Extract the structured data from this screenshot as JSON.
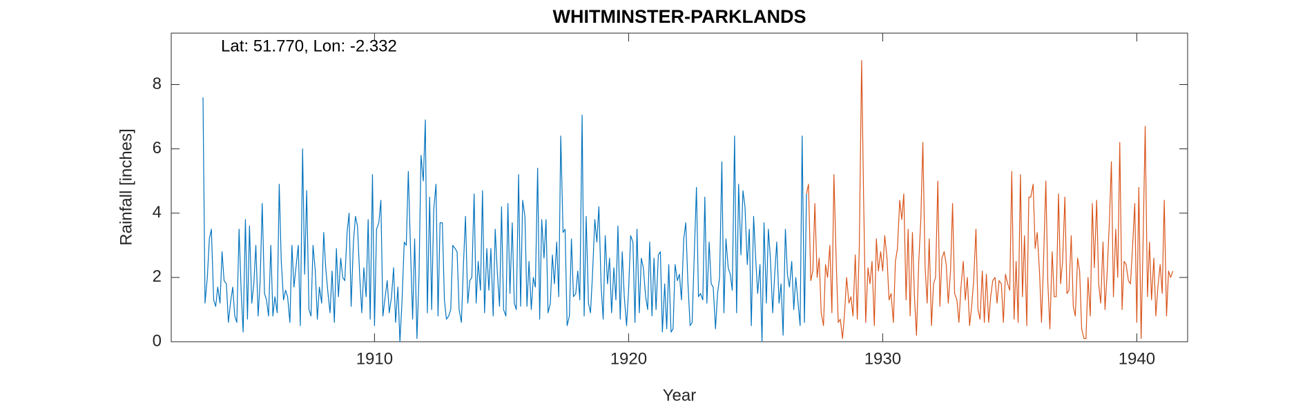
{
  "chart_data": {
    "type": "line",
    "title": "WHITMINSTER-PARKLANDS",
    "annotation": "Lat: 51.770, Lon: -2.332",
    "x_label": "Year",
    "y_label": "Rainfall [inches]",
    "xlim": [
      1902,
      1942
    ],
    "xticks": [
      1910,
      1920,
      1930,
      1940
    ],
    "ylim": [
      0,
      9.6
    ],
    "yticks": [
      0,
      2,
      4,
      6,
      8
    ],
    "grid": false,
    "series": [
      {
        "color": "#0072BD",
        "x": [
          1903.25,
          1903.33,
          1903.42,
          1903.5,
          1903.58,
          1903.67,
          1903.75,
          1903.83,
          1903.92,
          1904,
          1904.08,
          1904.17,
          1904.25,
          1904.33,
          1904.42,
          1904.5,
          1904.58,
          1904.67,
          1904.75,
          1904.83,
          1904.92,
          1905,
          1905.08,
          1905.17,
          1905.25,
          1905.33,
          1905.42,
          1905.5,
          1905.58,
          1905.67,
          1905.75,
          1905.83,
          1905.92,
          1906,
          1906.08,
          1906.17,
          1906.25,
          1906.33,
          1906.42,
          1906.5,
          1906.58,
          1906.67,
          1906.75,
          1906.83,
          1906.92,
          1907,
          1907.08,
          1907.17,
          1907.25,
          1907.33,
          1907.42,
          1907.5,
          1907.58,
          1907.67,
          1907.75,
          1907.83,
          1907.92,
          1908,
          1908.08,
          1908.17,
          1908.25,
          1908.33,
          1908.42,
          1908.5,
          1908.58,
          1908.67,
          1908.75,
          1908.83,
          1908.92,
          1909,
          1909.08,
          1909.17,
          1909.25,
          1909.33,
          1909.42,
          1909.5,
          1909.58,
          1909.67,
          1909.75,
          1909.83,
          1909.92,
          1910,
          1910.08,
          1910.17,
          1910.25,
          1910.33,
          1910.42,
          1910.5,
          1910.58,
          1910.67,
          1910.75,
          1910.83,
          1910.92,
          1911,
          1911.08,
          1911.17,
          1911.25,
          1911.33,
          1911.42,
          1911.5,
          1911.58,
          1911.67,
          1911.75,
          1911.83,
          1911.92,
          1912,
          1912.08,
          1912.17,
          1912.25,
          1912.33,
          1912.42,
          1912.5,
          1912.58,
          1912.67,
          1912.75,
          1912.83,
          1912.92,
          1913,
          1913.08,
          1913.17,
          1913.25,
          1913.33,
          1913.42,
          1913.5,
          1913.58,
          1913.67,
          1913.75,
          1913.83,
          1913.92,
          1914,
          1914.08,
          1914.17,
          1914.25,
          1914.33,
          1914.42,
          1914.5,
          1914.58,
          1914.67,
          1914.75,
          1914.83,
          1914.92,
          1915,
          1915.08,
          1915.17,
          1915.25,
          1915.33,
          1915.42,
          1915.5,
          1915.58,
          1915.67,
          1915.75,
          1915.83,
          1915.92,
          1916,
          1916.08,
          1916.17,
          1916.25,
          1916.33,
          1916.42,
          1916.5,
          1916.58,
          1916.67,
          1916.75,
          1916.83,
          1916.92,
          1917,
          1917.08,
          1917.17,
          1917.25,
          1917.33,
          1917.42,
          1917.5,
          1917.58,
          1917.67,
          1917.75,
          1917.83,
          1917.92,
          1918,
          1918.08,
          1918.17,
          1918.25,
          1918.33,
          1918.42,
          1918.5,
          1918.58,
          1918.67,
          1918.75,
          1918.83,
          1918.92,
          1919,
          1919.08,
          1919.17,
          1919.25,
          1919.33,
          1919.42,
          1919.5,
          1919.58,
          1919.67,
          1919.75,
          1919.83,
          1919.92,
          1920,
          1920.08,
          1920.17,
          1920.25,
          1920.33,
          1920.42,
          1920.5,
          1920.58,
          1920.67,
          1920.75,
          1920.83,
          1920.92,
          1921,
          1921.08,
          1921.17,
          1921.25,
          1921.33,
          1921.42,
          1921.5,
          1921.58,
          1921.67,
          1921.75,
          1921.83,
          1921.92,
          1922,
          1922.08,
          1922.17,
          1922.25,
          1922.33,
          1922.42,
          1922.5,
          1922.58,
          1922.67,
          1922.75,
          1922.83,
          1922.92,
          1923,
          1923.08,
          1923.17,
          1923.25,
          1923.33,
          1923.42,
          1923.5,
          1923.58,
          1923.67,
          1923.75,
          1923.83,
          1923.92,
          1924,
          1924.08,
          1924.17,
          1924.25,
          1924.33,
          1924.42,
          1924.5,
          1924.58,
          1924.67,
          1924.75,
          1924.83,
          1924.92,
          1925,
          1925.08,
          1925.17,
          1925.25,
          1925.33,
          1925.42,
          1925.5,
          1925.58,
          1925.67,
          1925.75,
          1925.83,
          1925.92,
          1926,
          1926.08,
          1926.17,
          1926.25,
          1926.33,
          1926.42,
          1926.5,
          1926.58,
          1926.67,
          1926.75,
          1926.83,
          1926.92,
          1927
        ],
        "values": [
          7.6,
          1.2,
          2.0,
          3.2,
          3.5,
          1.3,
          1.1,
          1.7,
          1.2,
          2.8,
          1.9,
          1.8,
          0.6,
          1.2,
          1.7,
          0.8,
          0.6,
          3.5,
          1.6,
          0.3,
          3.8,
          0.7,
          3.6,
          1.2,
          1.8,
          3.0,
          0.8,
          1.9,
          4.3,
          1.5,
          1.3,
          0.8,
          3.0,
          0.8,
          1.4,
          0.9,
          4.9,
          2.5,
          1.3,
          1.6,
          1.4,
          0.6,
          3.0,
          1.7,
          2.4,
          3.0,
          0.5,
          6.0,
          2.1,
          4.7,
          1.0,
          0.8,
          3.0,
          2.2,
          0.7,
          1.7,
          1.2,
          3.4,
          2.3,
          1.5,
          0.9,
          2.2,
          0.6,
          2.9,
          1.4,
          2.6,
          2.0,
          1.9,
          3.4,
          4.0,
          1.1,
          3.1,
          3.9,
          3.6,
          2.0,
          0.9,
          2.3,
          1.4,
          3.8,
          0.7,
          5.2,
          0.5,
          3.5,
          3.7,
          4.4,
          0.8,
          1.4,
          1.9,
          0.9,
          1.4,
          2.3,
          0.6,
          1.7,
          0.0,
          1.2,
          3.1,
          3.0,
          5.3,
          2.8,
          0.7,
          3.2,
          0.1,
          2.0,
          5.8,
          5.0,
          6.9,
          0.9,
          4.5,
          1.0,
          4.1,
          4.9,
          0.8,
          3.7,
          3.7,
          1.3,
          0.7,
          0.8,
          1.0,
          3.0,
          2.9,
          2.8,
          1.0,
          0.6,
          2.4,
          3.9,
          1.2,
          1.9,
          2.0,
          4.6,
          1.2,
          2.5,
          1.6,
          4.7,
          0.9,
          2.9,
          1.6,
          2.9,
          0.8,
          3.5,
          2.2,
          1.1,
          4.2,
          1.0,
          0.8,
          4.3,
          1.5,
          3.7,
          1.2,
          1.0,
          5.2,
          1.1,
          4.4,
          3.9,
          1.1,
          2.5,
          1.0,
          2.0,
          1.7,
          5.4,
          0.7,
          3.8,
          2.6,
          3.8,
          0.9,
          1.2,
          2.7,
          1.8,
          3.1,
          1.4,
          6.4,
          3.4,
          3.5,
          0.5,
          0.8,
          3.2,
          1.4,
          1.5,
          2.2,
          1.3,
          7.05,
          0.8,
          3.9,
          1.2,
          0.9,
          2.1,
          3.8,
          3.1,
          4.2,
          1.7,
          0.7,
          3.3,
          1.8,
          2.6,
          0.9,
          2.3,
          1.3,
          3.6,
          0.7,
          2.8,
          1.4,
          0.5,
          1.6,
          3.3,
          3.1,
          0.6,
          3.5,
          0.9,
          2.6,
          2.3,
          1.4,
          1.0,
          3.1,
          0.8,
          2.6,
          1.0,
          2.7,
          2.8,
          0.3,
          1.8,
          0.4,
          2.4,
          0.3,
          0.4,
          2.4,
          1.9,
          2.1,
          1.3,
          3.2,
          3.7,
          1.9,
          0.5,
          0.6,
          2.6,
          4.8,
          1.4,
          1.5,
          1.3,
          4.5,
          1.2,
          3.1,
          1.8,
          1.7,
          0.4,
          1.5,
          2.0,
          5.6,
          0.9,
          3.2,
          2.3,
          2.1,
          1.6,
          6.4,
          0.9,
          4.9,
          2.7,
          4.7,
          4.2,
          2.4,
          3.5,
          0.5,
          3.9,
          2.6,
          1.5,
          2.4,
          0.0,
          3.7,
          1.2,
          3.5,
          2.6,
          0.9,
          2.1,
          3.1,
          1.2,
          1.8,
          0.2,
          3.5,
          2.1,
          1.7,
          2.5,
          1.0,
          2.0,
          1.2,
          0.5,
          6.4,
          0.6,
          4.6
        ]
      },
      {
        "color": "#D95319",
        "x": [
          1927,
          1927.08,
          1927.17,
          1927.25,
          1927.33,
          1927.42,
          1927.5,
          1927.58,
          1927.67,
          1927.75,
          1927.83,
          1927.92,
          1928,
          1928.08,
          1928.17,
          1928.25,
          1928.33,
          1928.42,
          1928.5,
          1928.58,
          1928.67,
          1928.75,
          1928.83,
          1928.92,
          1929,
          1929.08,
          1929.17,
          1929.25,
          1929.33,
          1929.42,
          1929.5,
          1929.58,
          1929.67,
          1929.75,
          1929.83,
          1929.92,
          1930,
          1930.08,
          1930.17,
          1930.25,
          1930.33,
          1930.42,
          1930.5,
          1930.58,
          1930.67,
          1930.75,
          1930.83,
          1930.92,
          1931,
          1931.08,
          1931.17,
          1931.25,
          1931.33,
          1931.42,
          1931.5,
          1931.58,
          1931.67,
          1931.75,
          1931.83,
          1931.92,
          1932,
          1932.08,
          1932.17,
          1932.25,
          1932.33,
          1932.42,
          1932.5,
          1932.58,
          1932.67,
          1932.75,
          1932.83,
          1932.92,
          1933,
          1933.08,
          1933.17,
          1933.25,
          1933.33,
          1933.42,
          1933.5,
          1933.58,
          1933.67,
          1933.75,
          1933.83,
          1933.92,
          1934,
          1934.08,
          1934.17,
          1934.25,
          1934.33,
          1934.42,
          1934.5,
          1934.58,
          1934.67,
          1934.75,
          1934.83,
          1934.92,
          1935,
          1935.08,
          1935.17,
          1935.25,
          1935.33,
          1935.42,
          1935.5,
          1935.58,
          1935.67,
          1935.75,
          1935.83,
          1935.92,
          1936,
          1936.08,
          1936.17,
          1936.25,
          1936.33,
          1936.42,
          1936.5,
          1936.58,
          1936.67,
          1936.75,
          1936.83,
          1936.92,
          1937,
          1937.08,
          1937.17,
          1937.25,
          1937.33,
          1937.42,
          1937.5,
          1937.58,
          1937.67,
          1937.75,
          1937.83,
          1937.92,
          1938,
          1938.08,
          1938.17,
          1938.25,
          1938.33,
          1938.42,
          1938.5,
          1938.58,
          1938.67,
          1938.75,
          1938.83,
          1938.92,
          1939,
          1939.08,
          1939.17,
          1939.25,
          1939.33,
          1939.42,
          1939.5,
          1939.58,
          1939.67,
          1939.75,
          1939.83,
          1939.92,
          1940,
          1940.08,
          1940.17,
          1940.25,
          1940.33,
          1940.42,
          1940.5,
          1940.58,
          1940.67,
          1940.75,
          1940.83,
          1940.92,
          1941,
          1941.08,
          1941.17,
          1941.25,
          1941.33,
          1941.42
        ],
        "values": [
          4.6,
          4.9,
          1.9,
          2.2,
          4.3,
          2.0,
          2.6,
          0.9,
          0.5,
          2.4,
          2.0,
          3.0,
          0.9,
          5.2,
          2.5,
          0.6,
          0.7,
          0.1,
          0.9,
          2.0,
          1.2,
          1.4,
          0.8,
          2.7,
          0.7,
          3.0,
          8.75,
          4.4,
          0.6,
          2.3,
          1.8,
          2.5,
          0.5,
          3.2,
          2.2,
          2.8,
          2.2,
          3.3,
          2.6,
          1.3,
          1.5,
          0.6,
          2.5,
          2.9,
          4.4,
          3.8,
          4.6,
          1.3,
          3.5,
          0.8,
          3.4,
          1.4,
          0.2,
          2.5,
          3.8,
          6.2,
          2.3,
          1.2,
          3.2,
          0.5,
          1.8,
          2.0,
          5.0,
          1.1,
          2.6,
          2.8,
          2.4,
          1.2,
          2.2,
          4.3,
          1.5,
          1.3,
          0.6,
          1.7,
          2.5,
          1.3,
          2.0,
          0.5,
          1.1,
          1.9,
          3.5,
          1.0,
          0.7,
          2.2,
          0.6,
          2.1,
          0.6,
          1.4,
          1.9,
          2.0,
          1.2,
          1.9,
          1.8,
          0.6,
          2.1,
          1.8,
          1.6,
          5.3,
          0.7,
          2.5,
          0.6,
          5.2,
          1.4,
          3.3,
          0.5,
          4.5,
          4.5,
          4.9,
          2.9,
          3.4,
          2.2,
          0.6,
          2.5,
          5.0,
          1.8,
          0.4,
          2.8,
          1.4,
          1.4,
          4.6,
          1.8,
          2.5,
          4.5,
          1.5,
          1.6,
          3.3,
          1.1,
          0.8,
          2.6,
          2.2,
          0.4,
          0.1,
          0.1,
          2.0,
          0.8,
          4.3,
          2.3,
          4.4,
          1.8,
          1.2,
          3.1,
          1.0,
          2.1,
          3.7,
          5.6,
          1.4,
          3.5,
          2.0,
          6.2,
          1.0,
          2.5,
          2.4,
          1.9,
          1.8,
          2.9,
          4.3,
          0.6,
          4.8,
          0.1,
          3.2,
          6.7,
          1.4,
          3.1,
          1.3,
          2.6,
          0.8,
          1.7,
          2.4,
          1.5,
          4.4,
          0.8,
          2.2,
          2.0,
          2.2
        ]
      }
    ]
  }
}
